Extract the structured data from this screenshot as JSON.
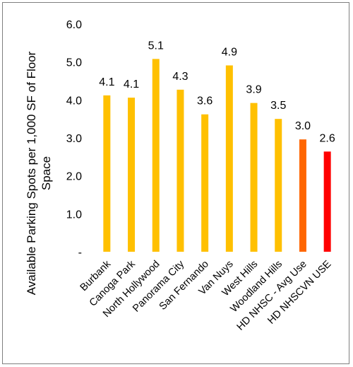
{
  "chart_data": {
    "type": "bar",
    "ylabel_line1": "Available Parking Spots per 1,000 SF of Floor",
    "ylabel_line2": "Space",
    "ylim": [
      0,
      6
    ],
    "yticks": [
      {
        "value": 0,
        "label": "-"
      },
      {
        "value": 1,
        "label": "1.0"
      },
      {
        "value": 2,
        "label": "2.0"
      },
      {
        "value": 3,
        "label": "3.0"
      },
      {
        "value": 4,
        "label": "4.0"
      },
      {
        "value": 5,
        "label": "5.0"
      },
      {
        "value": 6,
        "label": "6.0"
      }
    ],
    "grid": false,
    "categories": [
      "Burbank",
      "Canoga Park",
      "North Hollywood",
      "Panorama City",
      "San Fernando",
      "Van Nuys",
      "West Hills",
      "Woodland Hills",
      "HD NHSC - Avg Use",
      "HD NHSCVN USE"
    ],
    "values": [
      4.12,
      4.06,
      5.08,
      4.27,
      3.62,
      4.91,
      3.92,
      3.5,
      2.96,
      2.64
    ],
    "data_labels": [
      "4.1",
      "4.1",
      "5.1",
      "4.3",
      "3.6",
      "4.9",
      "3.9",
      "3.5",
      "3.0",
      "2.6"
    ],
    "colors": [
      "#FFC000",
      "#FFC000",
      "#FFC000",
      "#FFC000",
      "#FFC000",
      "#FFC000",
      "#FFC000",
      "#FFC000",
      "#FF6600",
      "#FF0000"
    ]
  }
}
